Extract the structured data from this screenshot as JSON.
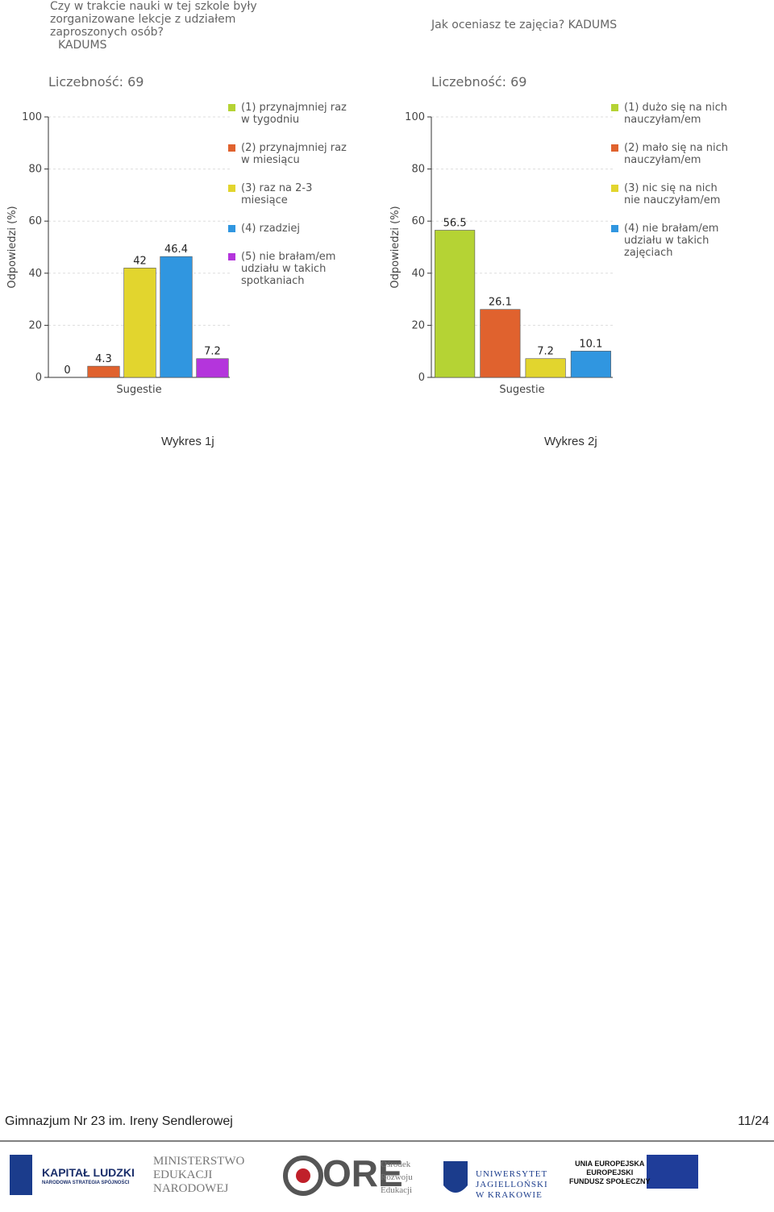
{
  "chart_data": [
    {
      "type": "bar",
      "title_lines": [
        "Czy w trakcie nauki w tej szkole były",
        "zorganizowane lekcje z udziałem",
        "zaproszonych osób?",
        "KADUMS"
      ],
      "subtitle": "Liczebność: 69",
      "xlabel": "Sugestie",
      "ylabel": "Odpowiedzi (%)",
      "categories": [
        "(1) przynajmniej raz w tygodniu",
        "(2) przynajmniej raz w miesiącu",
        "(3) raz na 2-3 miesiące",
        "(4) rzadziej",
        "(5) nie brałam/em udziału w takich spotkaniach"
      ],
      "values": [
        0,
        4.3,
        42,
        46.4,
        7.2
      ],
      "colors": [
        "#b5d334",
        "#e0622e",
        "#e2d52e",
        "#3096e0",
        "#b435dc"
      ],
      "ylim": [
        0,
        100
      ],
      "yticks": [
        0,
        20,
        40,
        60,
        80,
        100
      ],
      "grid": true
    },
    {
      "type": "bar",
      "title_lines": [
        "Jak oceniasz te zajęcia? KADUMS"
      ],
      "subtitle": "Liczebność: 69",
      "xlabel": "Sugestie",
      "ylabel": "Odpowiedzi (%)",
      "categories": [
        "(1) dużo się na nich nauczyłam/em",
        "(2) mało się na nich nauczyłam/em",
        "(3) nic się na nich nie nauczyłam/em",
        "(4) nie brałam/em udziału w takich zajęciach"
      ],
      "values": [
        56.5,
        26.1,
        7.2,
        10.1
      ],
      "colors": [
        "#b5d334",
        "#e0622e",
        "#e2d52e",
        "#3096e0"
      ],
      "ylim": [
        0,
        100
      ],
      "yticks": [
        0,
        20,
        40,
        60,
        80,
        100
      ],
      "grid": true
    }
  ],
  "captions": [
    "Wykres 1j",
    "Wykres 2j"
  ],
  "footer": {
    "left": "Gimnazjum Nr 23 im. Ireny Sendlerowej",
    "right": "11/24"
  },
  "logos": {
    "kl": "KAPITAŁ LUDZKI",
    "kl_sub": "NARODOWA STRATEGIA SPÓJNOŚCI",
    "men": [
      "MINISTERSTWO",
      "EDUKACJI",
      "NARODOWEJ"
    ],
    "ore": "ORE",
    "ore_sub": [
      "Ośrodek",
      "Rozwoju",
      "Edukacji"
    ],
    "uj": [
      "UNIWERSYTET",
      "JAGIELLOŃSKI",
      "W KRAKOWIE"
    ],
    "ue": [
      "UNIA EUROPEJSKA",
      "EUROPEJSKI",
      "FUNDUSZ SPOŁECZNY"
    ]
  }
}
